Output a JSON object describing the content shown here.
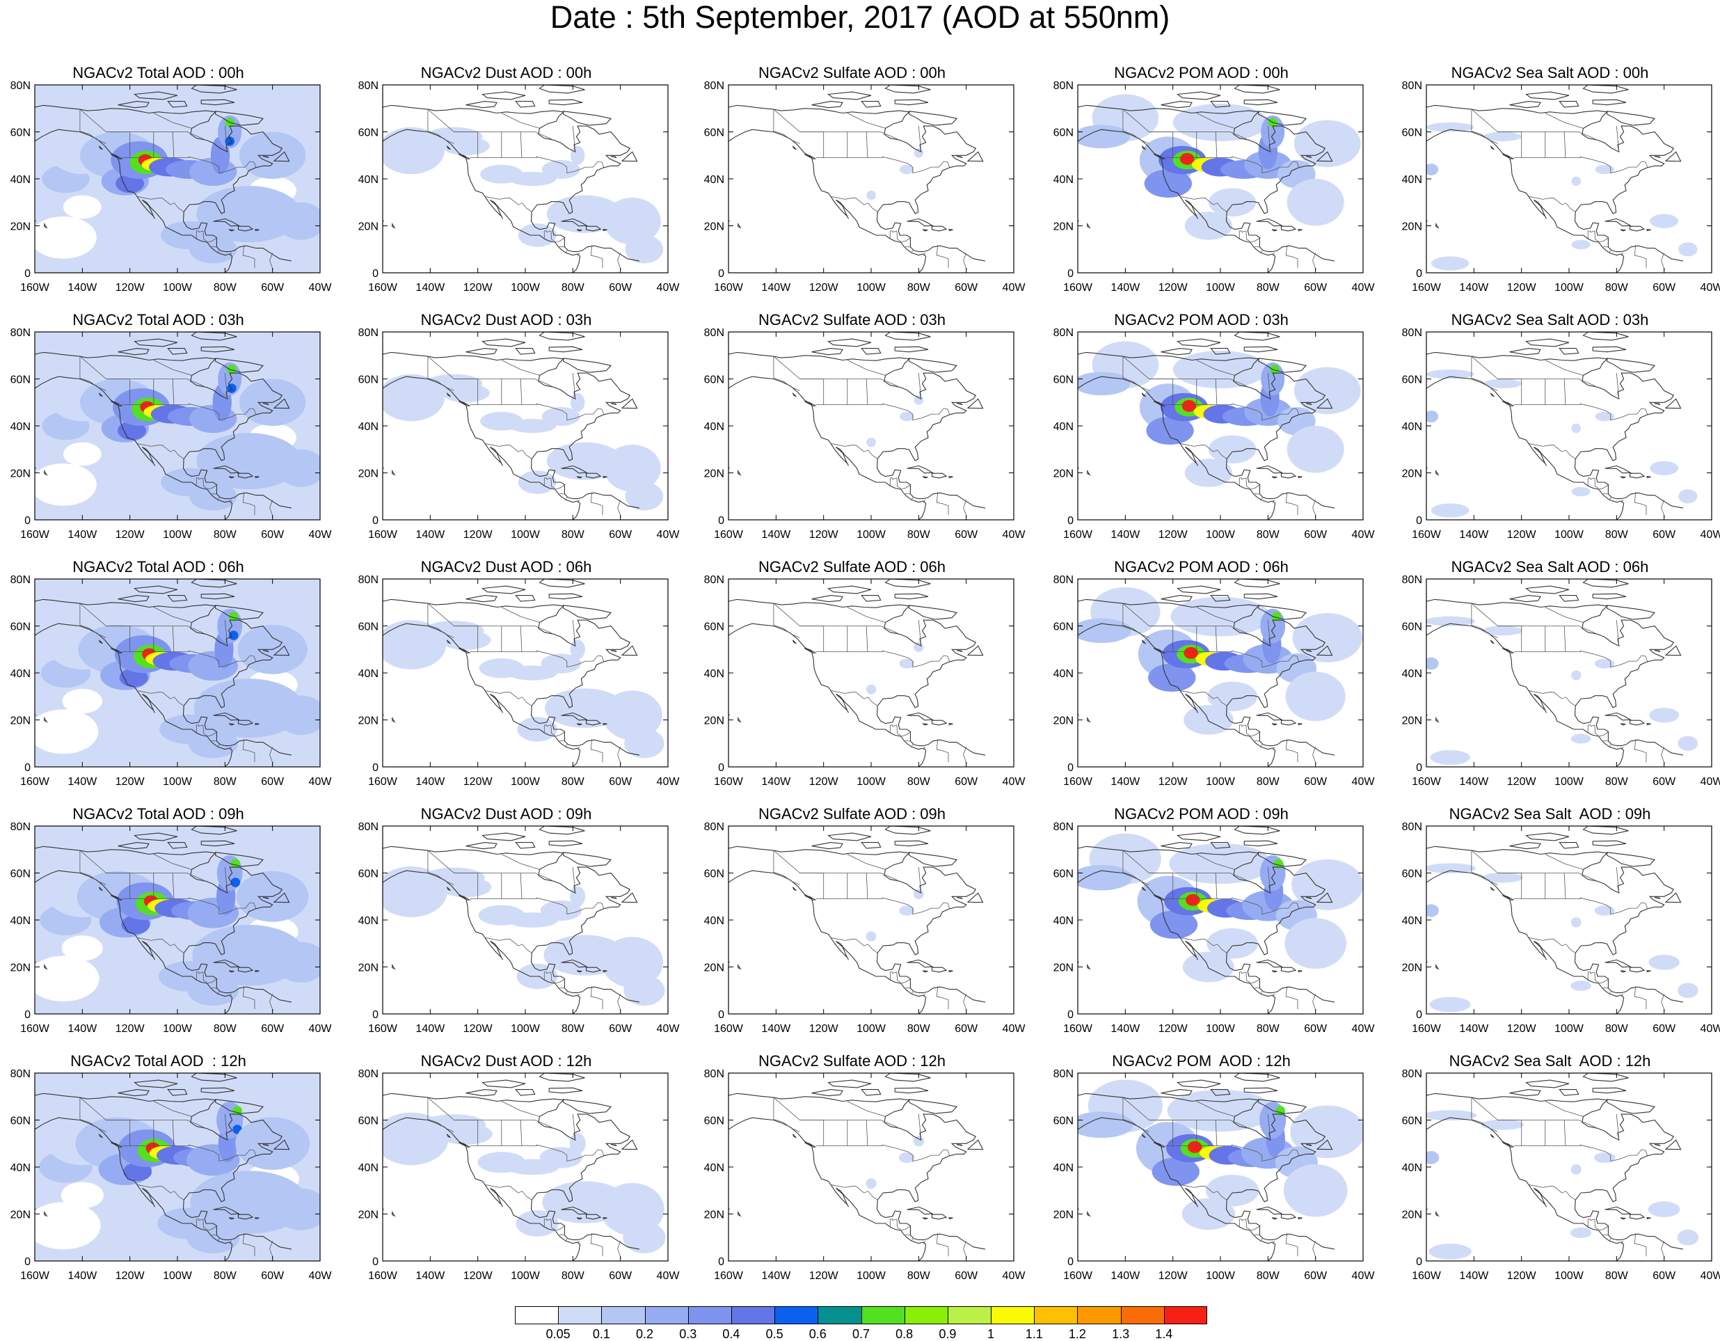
{
  "title": "Date : 5th September, 2017 (AOD at 550nm)",
  "panel_titles": [
    [
      "NGACv2 Total AOD : 00h",
      "NGACv2 Dust AOD : 00h",
      "NGACv2 Sulfate AOD : 00h",
      "NGACv2 POM AOD : 00h",
      "NGACv2 Sea Salt AOD : 00h"
    ],
    [
      "NGACv2 Total AOD : 03h",
      "NGACv2 Dust AOD : 03h",
      "NGACv2 Sulfate AOD : 03h",
      "NGACv2 POM AOD : 03h",
      "NGACv2 Sea Salt AOD : 03h"
    ],
    [
      "NGACv2 Total AOD : 06h",
      "NGACv2 Dust AOD : 06h",
      "NGACv2 Sulfate AOD : 06h",
      "NGACv2 POM AOD : 06h",
      "NGACv2 Sea Salt AOD : 06h"
    ],
    [
      "NGACv2 Total AOD : 09h",
      "NGACv2 Dust AOD : 09h",
      "NGACv2 Sulfate AOD : 09h",
      "NGACv2 POM AOD : 09h",
      "NGACv2 Sea Salt  AOD : 09h"
    ],
    [
      "NGACv2 Total AOD  : 12h",
      "NGACv2 Dust AOD : 12h",
      "NGACv2 Sulfate AOD : 12h",
      "NGACv2 POM  AOD : 12h",
      "NGACv2 Sea Salt  AOD : 12h"
    ]
  ],
  "x_ticks": [
    "160W",
    "140W",
    "120W",
    "100W",
    "80W",
    "60W",
    "40W"
  ],
  "y_ticks": [
    "0",
    "20N",
    "40N",
    "60N",
    "80N"
  ],
  "legend": {
    "labels": [
      "0.05",
      "0.1",
      "0.2",
      "0.3",
      "0.4",
      "0.5",
      "0.6",
      "0.7",
      "0.8",
      "0.9",
      "1",
      "1.1",
      "1.2",
      "1.3",
      "1.4"
    ],
    "colors": [
      "#ffffff",
      "#d0dcf7",
      "#b4c6f4",
      "#96acf2",
      "#7e94ee",
      "#6475e8",
      "#0a61f0",
      "#079090",
      "#52e021",
      "#8aee07",
      "#bbf046",
      "#fbfa05",
      "#fcc000",
      "#fd9900",
      "#fa6d06",
      "#f72014"
    ]
  }
}
